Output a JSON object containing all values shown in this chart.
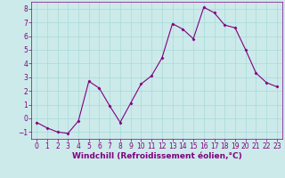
{
  "x": [
    0,
    1,
    2,
    3,
    4,
    5,
    6,
    7,
    8,
    9,
    10,
    11,
    12,
    13,
    14,
    15,
    16,
    17,
    18,
    19,
    20,
    21,
    22,
    23
  ],
  "y": [
    -0.3,
    -0.7,
    -1.0,
    -1.1,
    -0.2,
    2.7,
    2.2,
    0.9,
    -0.3,
    1.1,
    2.5,
    3.1,
    4.4,
    6.9,
    6.5,
    5.8,
    8.1,
    7.7,
    6.8,
    6.6,
    5.0,
    3.3,
    2.6,
    2.3
  ],
  "line_color": "#800080",
  "marker": "D",
  "marker_size": 1.5,
  "line_width": 0.8,
  "xlabel": "Windchill (Refroidissement éolien,°C)",
  "xlim": [
    -0.5,
    23.5
  ],
  "ylim": [
    -1.5,
    8.5
  ],
  "yticks": [
    -1,
    0,
    1,
    2,
    3,
    4,
    5,
    6,
    7,
    8
  ],
  "xticks": [
    0,
    1,
    2,
    3,
    4,
    5,
    6,
    7,
    8,
    9,
    10,
    11,
    12,
    13,
    14,
    15,
    16,
    17,
    18,
    19,
    20,
    21,
    22,
    23
  ],
  "grid_color": "#a8dada",
  "background_color": "#cceaea",
  "line_border_color": "#800080",
  "label_color": "#800080",
  "label_fontsize": 6.5,
  "tick_fontsize": 5.5
}
